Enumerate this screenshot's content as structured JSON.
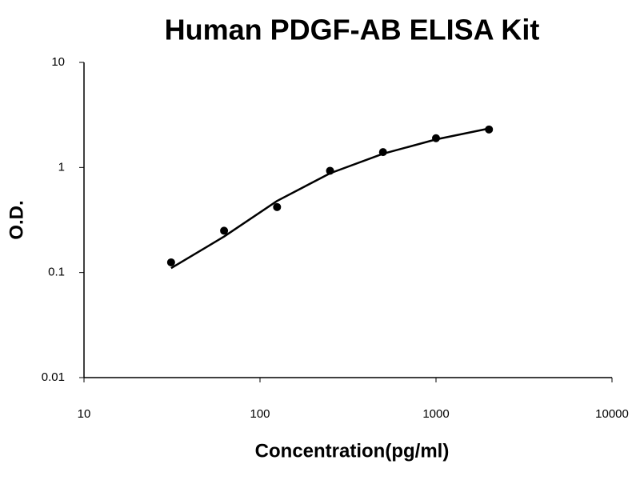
{
  "chart_data": {
    "type": "scatter",
    "title": "Human PDGF-AB ELISA Kit",
    "x_label": "Concentration(pg/ml)",
    "y_label": "O.D.",
    "xscale": "log",
    "yscale": "log",
    "xlim": [
      10,
      10000
    ],
    "ylim": [
      0.01,
      10
    ],
    "xticks": [
      10,
      100,
      1000,
      10000
    ],
    "yticks": [
      0.01,
      0.1,
      1,
      10
    ],
    "series": [
      {
        "type": "scatter",
        "color": "#000000",
        "x": [
          31.25,
          62.5,
          125,
          250,
          500,
          1000,
          2000
        ],
        "values": [
          0.125,
          0.25,
          0.42,
          0.93,
          1.4,
          1.9,
          2.3
        ]
      },
      {
        "type": "line",
        "color": "#000000",
        "x": [
          31.25,
          62.5,
          125,
          250,
          500,
          1000,
          2000
        ],
        "values": [
          0.11,
          0.22,
          0.48,
          0.88,
          1.35,
          1.85,
          2.35
        ]
      }
    ]
  }
}
